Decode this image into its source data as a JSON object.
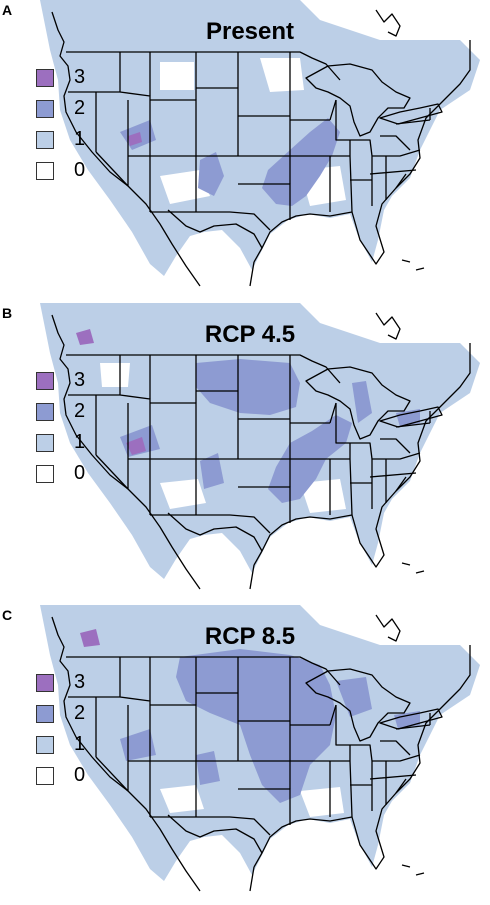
{
  "colors": {
    "level_3": "#9c6fbf",
    "level_2": "#8d9bd2",
    "level_1": "#bccfe7",
    "level_0": "#ffffff",
    "border": "#000000"
  },
  "legend": [
    {
      "label": "3",
      "color": "#9c6fbf"
    },
    {
      "label": "2",
      "color": "#8d9bd2"
    },
    {
      "label": "1",
      "color": "#bccfe7"
    },
    {
      "label": "0",
      "color": "#ffffff"
    }
  ],
  "panels": [
    {
      "letter": "A",
      "title": "Present"
    },
    {
      "letter": "B",
      "title": "RCP 4.5"
    },
    {
      "letter": "C",
      "title": "RCP 8.5"
    }
  ]
}
